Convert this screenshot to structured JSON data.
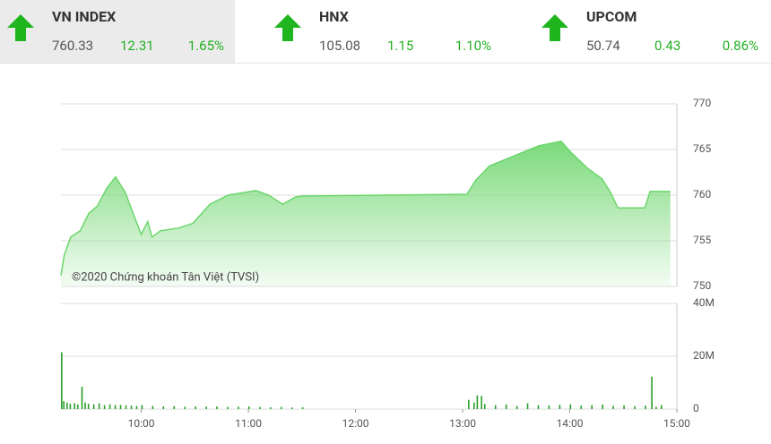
{
  "indices": [
    {
      "name": "VN INDEX",
      "value": 760.33,
      "change": 12.31,
      "percent": "1.65%"
    },
    {
      "name": "HNX",
      "value": 105.08,
      "change": 1.15,
      "percent": "1.10%"
    },
    {
      "name": "UPCOM",
      "value": 50.74,
      "change": 0.43,
      "percent": "0.86%"
    }
  ],
  "chart_data": [
    {
      "type": "area",
      "color": "#6cd66c",
      "annotation": "©2020 Chứng khoán Tân Việt (TVSI)",
      "x": [
        9.25,
        9.28,
        9.34,
        9.43,
        9.51,
        9.59,
        9.68,
        9.76,
        9.85,
        9.93,
        10.0,
        10.06,
        10.1,
        10.18,
        10.35,
        10.48,
        10.64,
        10.81,
        11.07,
        11.19,
        11.32,
        11.44,
        11.51,
        13.04,
        13.12,
        13.25,
        13.46,
        13.71,
        13.92,
        14.01,
        14.17,
        14.3,
        14.38,
        14.45,
        14.7,
        14.75,
        14.94
      ],
      "values": [
        751.2,
        753.4,
        755.4,
        756.1,
        758.0,
        758.8,
        760.8,
        762.0,
        760.3,
        757.8,
        755.7,
        757.1,
        755.4,
        756.1,
        756.4,
        756.9,
        759.0,
        760.0,
        760.5,
        760.0,
        759.0,
        759.8,
        759.9,
        760.1,
        761.6,
        763.2,
        764.2,
        765.4,
        765.9,
        764.7,
        762.9,
        761.8,
        760.3,
        758.6,
        758.6,
        760.4,
        760.4
      ],
      "xlim": [
        9.25,
        15
      ],
      "ylim": [
        750,
        770
      ],
      "yticks": [
        750,
        755,
        760,
        765,
        770
      ],
      "grid": true
    },
    {
      "type": "bar",
      "color": "#2a9d2a",
      "x": [
        9.25,
        9.27,
        9.3,
        9.33,
        9.37,
        9.4,
        9.44,
        9.47,
        9.5,
        9.55,
        9.6,
        9.65,
        9.7,
        9.75,
        9.8,
        9.85,
        9.9,
        9.95,
        10.0,
        10.1,
        10.2,
        10.3,
        10.4,
        10.5,
        10.6,
        10.7,
        10.8,
        10.9,
        11.0,
        11.1,
        11.2,
        11.3,
        11.4,
        11.5,
        13.05,
        13.1,
        13.13,
        13.17,
        13.2,
        13.3,
        13.4,
        13.5,
        13.6,
        13.7,
        13.8,
        13.9,
        14.0,
        14.1,
        14.2,
        14.3,
        14.4,
        14.5,
        14.6,
        14.7,
        14.76,
        14.8,
        14.85
      ],
      "values": [
        21500000,
        3000000,
        2500000,
        2000000,
        2200000,
        1800000,
        8500000,
        2500000,
        2000000,
        1800000,
        2200000,
        1500000,
        1800000,
        1500000,
        1600000,
        1400000,
        1300000,
        1200000,
        1500000,
        1200000,
        1000000,
        1100000,
        900000,
        1000000,
        900000,
        1000000,
        800000,
        900000,
        1000000,
        800000,
        700000,
        800000,
        600000,
        700000,
        3500000,
        2500000,
        5200000,
        5000000,
        2000000,
        1500000,
        1800000,
        1200000,
        2200000,
        1500000,
        1400000,
        1600000,
        1800000,
        1300000,
        1500000,
        1700000,
        1200000,
        1400000,
        1100000,
        1300000,
        12300000,
        900000,
        1500000
      ],
      "xlim": [
        9.25,
        15
      ],
      "ylim": [
        0,
        40000000
      ],
      "yticks": [
        0,
        {
          "value": 20000000,
          "label": "20M"
        },
        {
          "value": 40000000,
          "label": "40M"
        }
      ],
      "xticks": [
        {
          "value": 10,
          "label": "10:00"
        },
        {
          "value": 11,
          "label": "11:00"
        },
        {
          "value": 12,
          "label": "12:00"
        },
        {
          "value": 13,
          "label": "13:00"
        },
        {
          "value": 14,
          "label": "14:00"
        },
        {
          "value": 15,
          "label": "15:00"
        }
      ],
      "grid": true
    }
  ]
}
